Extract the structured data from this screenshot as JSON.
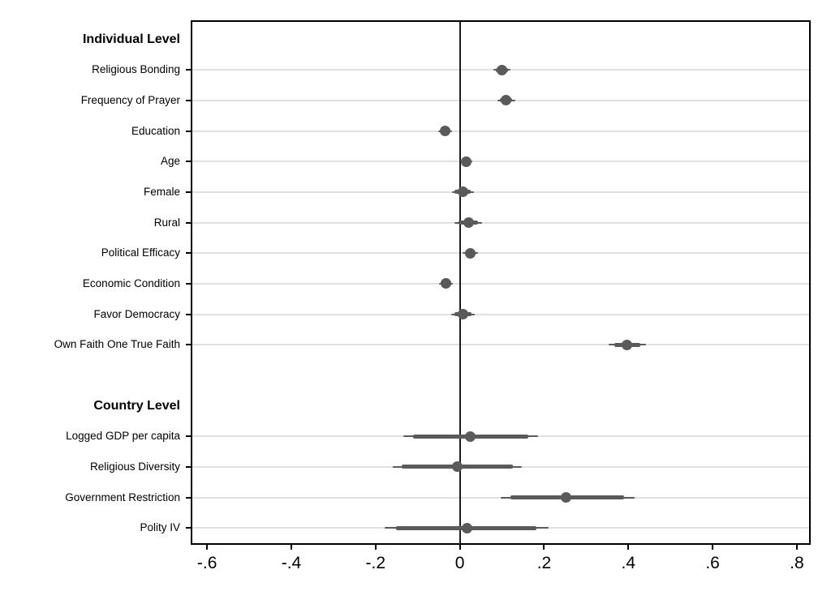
{
  "figure": {
    "background": "#ffffff",
    "marker_color": "#5a5a5a",
    "ci_color": "#5a5a5a",
    "gridline_color": "#e0e0e0",
    "axis_color": "#000000",
    "zero_line_color": "#1c1c1c"
  },
  "chart_data": {
    "type": "scatter",
    "subtype": "coefficient-forest-plot",
    "title": "",
    "xlabel": "",
    "ylabel": "",
    "legend": "none",
    "grid": "horizontal-gridlines-per-coefficient",
    "xlim": [
      -0.635,
      0.829
    ],
    "x_ticks": [
      -0.6,
      -0.4,
      -0.2,
      0,
      0.2,
      0.4,
      0.6,
      0.8
    ],
    "x_tick_labels": [
      "-.6",
      "-.4",
      "-.2",
      "0",
      ".2",
      ".4",
      ".6",
      ".8"
    ],
    "zero_line": 0,
    "groups": [
      {
        "header": "Individual Level",
        "coefficients": [
          {
            "label": "Religious Bonding",
            "estimate": 0.1,
            "ci_thick": [
              0.086,
              0.114
            ],
            "ci_thin": [
              0.079,
              0.121
            ]
          },
          {
            "label": "Frequency of Prayer",
            "estimate": 0.11,
            "ci_thick": [
              0.096,
              0.124
            ],
            "ci_thin": [
              0.089,
              0.131
            ]
          },
          {
            "label": "Education",
            "estimate": -0.035,
            "ci_thick": [
              -0.047,
              -0.023
            ],
            "ci_thin": [
              -0.052,
              -0.018
            ]
          },
          {
            "label": "Age",
            "estimate": 0.015,
            "ci_thick": [
              0.005,
              0.025
            ],
            "ci_thin": [
              0.001,
              0.029
            ]
          },
          {
            "label": "Female",
            "estimate": 0.007,
            "ci_thick": [
              -0.012,
              0.026
            ],
            "ci_thin": [
              -0.019,
              0.033
            ]
          },
          {
            "label": "Rural",
            "estimate": 0.02,
            "ci_thick": [
              -0.004,
              0.044
            ],
            "ci_thin": [
              -0.012,
              0.052
            ]
          },
          {
            "label": "Political Efficacy",
            "estimate": 0.025,
            "ci_thick": [
              0.012,
              0.038
            ],
            "ci_thin": [
              0.007,
              0.043
            ]
          },
          {
            "label": "Economic Condition",
            "estimate": -0.033,
            "ci_thick": [
              -0.045,
              -0.021
            ],
            "ci_thin": [
              -0.05,
              -0.016
            ]
          },
          {
            "label": "Favor Democracy",
            "estimate": 0.007,
            "ci_thick": [
              -0.013,
              0.027
            ],
            "ci_thin": [
              -0.021,
              0.035
            ]
          },
          {
            "label": "Own Faith One True Faith",
            "estimate": 0.396,
            "ci_thick": [
              0.366,
              0.429
            ],
            "ci_thin": [
              0.354,
              0.441
            ]
          }
        ]
      },
      {
        "header": "Country Level",
        "coefficients": [
          {
            "label": "Logged GDP per capita",
            "estimate": 0.024,
            "ci_thick": [
              -0.111,
              0.163
            ],
            "ci_thin": [
              -0.134,
              0.186
            ]
          },
          {
            "label": "Religious Diversity",
            "estimate": -0.007,
            "ci_thick": [
              -0.138,
              0.125
            ],
            "ci_thin": [
              -0.16,
              0.148
            ]
          },
          {
            "label": "Government Restriction",
            "estimate": 0.253,
            "ci_thick": [
              0.121,
              0.39
            ],
            "ci_thin": [
              0.097,
              0.414
            ]
          },
          {
            "label": "Polity IV",
            "estimate": 0.018,
            "ci_thick": [
              -0.152,
              0.182
            ],
            "ci_thin": [
              -0.179,
              0.21
            ]
          }
        ]
      }
    ]
  }
}
